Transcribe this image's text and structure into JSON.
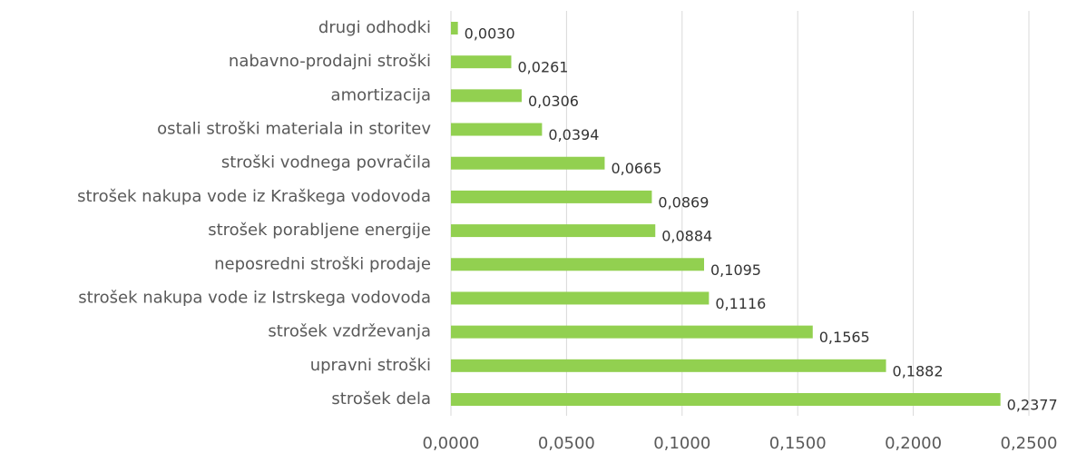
{
  "chart_data": {
    "type": "bar",
    "orientation": "horizontal",
    "categories": [
      "drugi odhodki",
      "nabavno-prodajni stroški",
      "amortizacija",
      "ostali stroški materiala in storitev",
      "stroški vodnega povračila",
      "strošek nakupa vode iz Kraškega vodovoda",
      "strošek porabljene energije",
      "neposredni stroški prodaje",
      "strošek nakupa vode iz Istrskega vodovoda",
      "strošek vzdrževanja",
      "upravni stroški",
      "strošek dela"
    ],
    "values": [
      0.003,
      0.0261,
      0.0306,
      0.0394,
      0.0665,
      0.0869,
      0.0884,
      0.1095,
      0.1116,
      0.1565,
      0.1882,
      0.2377
    ],
    "value_labels": [
      "0,0030",
      "0,0261",
      "0,0306",
      "0,0394",
      "0,0665",
      "0,0869",
      "0,0884",
      "0,1095",
      "0,1116",
      "0,1565",
      "0,1882",
      "0,2377"
    ],
    "color": "#92d050",
    "xlim": [
      0,
      0.25
    ],
    "xticks": [
      {
        "value": 0,
        "label": "0,0000"
      },
      {
        "value": 0.05,
        "label": "0,0500"
      },
      {
        "value": 0.1,
        "label": "0,1000"
      },
      {
        "value": 0.15,
        "label": "0,1500"
      },
      {
        "value": 0.2,
        "label": "0,2000"
      },
      {
        "value": 0.25,
        "label": "0,2500"
      }
    ],
    "grid": true
  }
}
